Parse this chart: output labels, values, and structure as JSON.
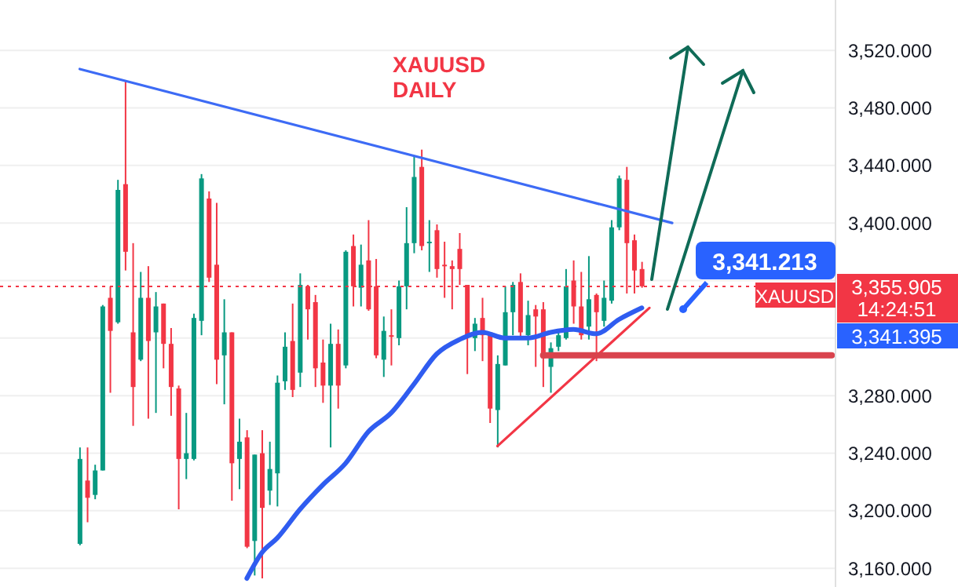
{
  "chart_data": {
    "type": "candlestick",
    "title": "XAUUSD DAILY",
    "categories": [
      null,
      null,
      null,
      null,
      null,
      null,
      null,
      null,
      null,
      null,
      null,
      null,
      null,
      null,
      null,
      null,
      null,
      null,
      null,
      null,
      null,
      null,
      null,
      null,
      null,
      null,
      null,
      null,
      null,
      null,
      null,
      null,
      null,
      null,
      null,
      null,
      null,
      null,
      null,
      null,
      null,
      null,
      null,
      null,
      null,
      null,
      null,
      null,
      null,
      null,
      null,
      null,
      null,
      null,
      null,
      null,
      null,
      null,
      null,
      null,
      null,
      null,
      null,
      null,
      null,
      null,
      null,
      null,
      null,
      null,
      null,
      null,
      null,
      null,
      null,
      null,
      null,
      null,
      null,
      null,
      null,
      null,
      null,
      null,
      null,
      null,
      null,
      null,
      null,
      null,
      null,
      null,
      null,
      null,
      null,
      null,
      null,
      null,
      null,
      null,
      null,
      null,
      null,
      null,
      null,
      null,
      null,
      null,
      null,
      null
    ],
    "ohlc": [
      null,
      null,
      null,
      null,
      null,
      null,
      null,
      null,
      null,
      null,
      [
        3177,
        3244,
        3176,
        3236
      ],
      [
        3221,
        3244,
        3192,
        3209
      ],
      [
        3211,
        3232,
        3208,
        3228
      ],
      [
        3228,
        3343,
        3228,
        3342
      ],
      [
        3348,
        3356,
        3282,
        3325
      ],
      [
        3331,
        3430,
        3330,
        3423
      ],
      [
        3427,
        3499,
        3367,
        3380
      ],
      [
        3324,
        3386,
        3259,
        3286
      ],
      [
        3305,
        3366,
        3304,
        3348
      ],
      [
        3348,
        3370,
        3264,
        3318
      ],
      [
        3324,
        3352,
        3268,
        3342
      ],
      [
        3344,
        3344,
        3299,
        3316
      ],
      [
        3316,
        3327,
        3266,
        3286
      ],
      [
        3285,
        3287,
        3201,
        3236
      ],
      [
        3236,
        3268,
        3222,
        3240
      ],
      [
        3236,
        3337,
        3235,
        3334
      ],
      [
        3332,
        3434,
        3322,
        3431
      ],
      [
        3417,
        3422,
        3359,
        3362
      ],
      [
        3371,
        3414,
        3288,
        3305
      ],
      [
        3308,
        3347,
        3274,
        3324
      ],
      [
        3324,
        3324,
        3207,
        3233
      ],
      [
        3236,
        3264,
        3215,
        3248
      ],
      [
        3251,
        3256,
        3174,
        3175
      ],
      [
        3179,
        3239,
        3155,
        3239
      ],
      [
        3240,
        3256,
        3153,
        3202
      ],
      [
        3214,
        3248,
        3204,
        3229
      ],
      [
        3226,
        3294,
        3203,
        3289
      ],
      [
        3290,
        3324,
        3284,
        3314
      ],
      [
        3318,
        3344,
        3279,
        3284
      ],
      [
        3296,
        3365,
        3286,
        3357
      ],
      [
        3356,
        3357,
        3319,
        3340
      ],
      [
        3345,
        3350,
        3286,
        3299
      ],
      [
        3303,
        3319,
        3275,
        3287
      ],
      [
        3287,
        3330,
        3244,
        3316
      ],
      [
        3316,
        3326,
        3271,
        3287
      ],
      [
        3301,
        3381,
        3299,
        3380
      ],
      [
        3384,
        3392,
        3342,
        3356
      ],
      [
        3355,
        3385,
        3342,
        3371
      ],
      [
        3374,
        3402,
        3339,
        3340
      ],
      [
        3356,
        3375,
        3306,
        3308
      ],
      [
        3305,
        3335,
        3293,
        3325
      ],
      [
        3322,
        3340,
        3301,
        3321
      ],
      [
        3320,
        3360,
        3315,
        3356
      ],
      [
        3356,
        3411,
        3340,
        3386
      ],
      [
        3386,
        3447,
        3379,
        3432
      ],
      [
        3439,
        3451,
        3381,
        3384
      ],
      [
        3386,
        3402,
        3366,
        3387
      ],
      [
        3395,
        3399,
        3362,
        3368
      ],
      [
        3371,
        3387,
        3348,
        3370
      ],
      [
        3370,
        3374,
        3340,
        3368
      ],
      [
        3382,
        3393,
        3357,
        3368
      ],
      [
        3357,
        3357,
        3295,
        3322
      ],
      [
        3320,
        3334,
        3311,
        3330
      ],
      [
        3334,
        3348,
        3304,
        3322
      ],
      [
        3324,
        3324,
        3261,
        3271
      ],
      [
        3270,
        3308,
        3244,
        3302
      ],
      [
        3301,
        3356,
        3301,
        3338
      ],
      [
        3338,
        3359,
        3322,
        3357
      ],
      [
        3359,
        3365,
        3319,
        3324
      ],
      [
        3322,
        3346,
        3315,
        3336
      ],
      [
        3340,
        3343,
        3300,
        3335
      ],
      [
        3340,
        3345,
        3286,
        3306
      ],
      [
        3300,
        3317,
        3282,
        3313
      ],
      [
        3314,
        3325,
        3311,
        3322
      ],
      [
        3320,
        3368,
        3319,
        3356
      ],
      [
        3360,
        3374,
        3330,
        3342
      ],
      [
        3342,
        3366,
        3319,
        3322
      ],
      [
        3328,
        3377,
        3319,
        3347
      ],
      [
        3350,
        3351,
        3304,
        3338
      ],
      [
        3332,
        3360,
        3328,
        3348
      ],
      [
        3346,
        3402,
        3344,
        3397
      ],
      [
        3397,
        3433,
        3395,
        3431
      ],
      [
        3430,
        3439,
        3351,
        3386
      ],
      [
        3388,
        3392,
        3351,
        3367
      ],
      [
        3368,
        3373,
        3355,
        3356
      ],
      null,
      null,
      null,
      null,
      null,
      null,
      null,
      null,
      null,
      null,
      null,
      null,
      null,
      null,
      null,
      null,
      null,
      null,
      null,
      null,
      null,
      null,
      null,
      null,
      null
    ],
    "series": [
      {
        "type": "line",
        "color": "#2f5cf0",
        "values": [
          null,
          null,
          null,
          null,
          null,
          null,
          null,
          null,
          null,
          null,
          null,
          null,
          null,
          null,
          null,
          null,
          null,
          null,
          null,
          null,
          null,
          null,
          null,
          null,
          null,
          null,
          null,
          null,
          null,
          null,
          null,
          null,
          3153,
          null,
          3171,
          null,
          3181,
          null,
          null,
          3201,
          null,
          null,
          3218,
          null,
          null,
          3233,
          null,
          null,
          3255,
          null,
          null,
          3268,
          null,
          null,
          3288,
          null,
          null,
          3309,
          null,
          null,
          3319,
          null,
          null,
          3324,
          null,
          null,
          3320,
          null,
          null,
          3320,
          null,
          null,
          3324,
          null,
          null,
          3326,
          null,
          null,
          3323,
          null,
          null,
          3333,
          null,
          null,
          3341,
          null,
          null,
          null,
          null,
          null,
          null,
          null,
          null,
          null,
          null,
          null,
          null,
          null,
          null,
          null,
          null,
          null,
          null,
          null,
          null,
          null,
          null,
          null,
          null,
          null
        ]
      },
      {
        "type": "line",
        "color": "#3d6bf5",
        "values": [
          null,
          null,
          null,
          null,
          null,
          null,
          null,
          null,
          null,
          null,
          3507,
          null,
          null,
          null,
          null,
          null,
          null,
          null,
          null,
          null,
          null,
          null,
          null,
          null,
          null,
          null,
          null,
          null,
          null,
          null,
          null,
          null,
          null,
          null,
          null,
          null,
          null,
          null,
          null,
          null,
          null,
          null,
          null,
          null,
          null,
          null,
          null,
          null,
          null,
          null,
          null,
          null,
          null,
          null,
          null,
          null,
          null,
          null,
          null,
          null,
          null,
          null,
          null,
          null,
          null,
          null,
          null,
          null,
          null,
          null,
          null,
          null,
          null,
          null,
          null,
          null,
          null,
          null,
          null,
          null,
          null,
          null,
          null,
          null,
          null,
          null,
          null,
          null,
          3400,
          null,
          null,
          null,
          null,
          null,
          null,
          null,
          null,
          null,
          null,
          null,
          null,
          null,
          null,
          null,
          null,
          null,
          null,
          null,
          null,
          null
        ]
      },
      {
        "type": "line",
        "color": "#f23645",
        "values": [
          null,
          null,
          null,
          null,
          null,
          null,
          null,
          null,
          null,
          null,
          null,
          null,
          null,
          null,
          null,
          null,
          null,
          null,
          null,
          null,
          null,
          null,
          null,
          null,
          null,
          null,
          null,
          null,
          null,
          null,
          null,
          null,
          null,
          null,
          null,
          null,
          null,
          null,
          null,
          null,
          null,
          null,
          null,
          null,
          null,
          null,
          null,
          null,
          null,
          null,
          null,
          null,
          null,
          null,
          null,
          null,
          null,
          null,
          null,
          null,
          null,
          null,
          null,
          null,
          null,
          3245,
          null,
          null,
          null,
          null,
          null,
          null,
          null,
          null,
          null,
          null,
          null,
          null,
          null,
          null,
          null,
          null,
          null,
          null,
          null,
          3341,
          null,
          null,
          null,
          null,
          null,
          null,
          null,
          null,
          null,
          null,
          null,
          null,
          null,
          null,
          null,
          null,
          null,
          null,
          null,
          null,
          null,
          null,
          null,
          null
        ]
      },
      {
        "type": "line",
        "color": "#d9434d",
        "values": [
          null,
          null,
          null,
          null,
          null,
          null,
          null,
          null,
          null,
          null,
          null,
          null,
          null,
          null,
          null,
          null,
          null,
          null,
          null,
          null,
          null,
          null,
          null,
          null,
          null,
          null,
          null,
          null,
          null,
          null,
          null,
          null,
          null,
          null,
          null,
          null,
          null,
          null,
          null,
          null,
          null,
          null,
          null,
          null,
          null,
          null,
          null,
          null,
          null,
          null,
          null,
          null,
          null,
          null,
          null,
          null,
          null,
          null,
          null,
          null,
          null,
          null,
          null,
          null,
          null,
          null,
          null,
          null,
          null,
          null,
          null,
          3308,
          null,
          null,
          null,
          null,
          null,
          null,
          null,
          null,
          null,
          null,
          null,
          null,
          null,
          null,
          null,
          null,
          null,
          null,
          null,
          null,
          null,
          null,
          null,
          null,
          null,
          null,
          null,
          null,
          null,
          null,
          null,
          null,
          null,
          null,
          null,
          null,
          null,
          3308
        ]
      }
    ],
    "ylim": [
      3147,
      3555
    ],
    "yticks": [
      {
        "value": 3160,
        "label": "3,160.000"
      },
      {
        "value": 3200,
        "label": "3,200.000"
      },
      {
        "value": 3240,
        "label": "3,240.000"
      },
      {
        "value": 3280,
        "label": "3,280.000"
      },
      {
        "value": 3320,
        "label": null
      },
      {
        "value": 3360,
        "label": null
      },
      {
        "value": 3400,
        "label": "3,400.000"
      },
      {
        "value": 3440,
        "label": "3,440.000"
      },
      {
        "value": 3480,
        "label": "3,480.000"
      },
      {
        "value": 3520,
        "label": "3,520.000"
      }
    ],
    "ref_lines": [
      {
        "axis": "y",
        "value": 3355.905,
        "label": "3,355.905",
        "color": "#f23645",
        "line_style": "dotted"
      }
    ],
    "annotations": [
      "3,341.213",
      "XAUUSD",
      "14:24:51",
      "3,341.395"
    ],
    "grid": "y",
    "tick_labels": "y",
    "marker": "none"
  }
}
